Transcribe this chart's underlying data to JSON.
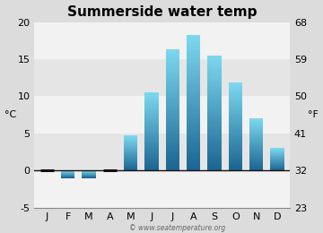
{
  "title": "Summerside water temp",
  "months": [
    "J",
    "F",
    "M",
    "A",
    "M",
    "J",
    "J",
    "A",
    "S",
    "O",
    "N",
    "D"
  ],
  "values_c": [
    0.0,
    -1.0,
    -1.0,
    0.0,
    4.7,
    10.5,
    16.3,
    18.2,
    15.5,
    11.8,
    7.0,
    3.0
  ],
  "ylim_c": [
    -5,
    20
  ],
  "ylim_f": [
    23,
    68
  ],
  "yticks_c": [
    -5,
    0,
    5,
    10,
    15,
    20
  ],
  "yticks_f": [
    23,
    32,
    41,
    50,
    59,
    68
  ],
  "ylabel_left": "°C",
  "ylabel_right": "°F",
  "watermark": "© www.seatemperature.org",
  "bar_color_top": "#7dd8ef",
  "bar_color_bottom": "#1a6490",
  "bg_color": "#dcdcdc",
  "plot_bg_color_light": "#f2f2f2",
  "plot_bg_color_dark": "#e5e5e5",
  "zero_line_color": "#111111",
  "title_fontsize": 11,
  "label_fontsize": 8,
  "tick_fontsize": 8
}
